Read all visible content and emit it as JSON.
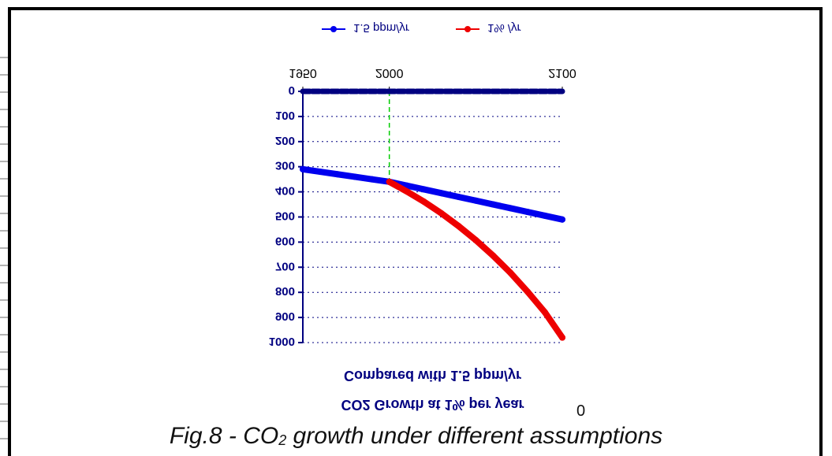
{
  "chart_data": {
    "type": "line",
    "title": "CO2 Growth at 1% per year",
    "subtitle": "Compared with 1.5 ppm/yr",
    "x": [
      1950,
      1960,
      1970,
      1980,
      1990,
      2000,
      2010,
      2020,
      2030,
      2040,
      2050,
      2060,
      2070,
      2080,
      2090,
      2100
    ],
    "x_ticks": [
      1950,
      2000,
      2100
    ],
    "xlim": [
      1950,
      2100
    ],
    "ylim": [
      0,
      1000
    ],
    "y_ticks": [
      0,
      100,
      200,
      300,
      400,
      500,
      600,
      700,
      800,
      900,
      1000
    ],
    "grid": true,
    "legend_position": "top",
    "series": [
      {
        "name": "1.5 ppm/yr",
        "color": "#0000ee",
        "x": [
          1950,
          1960,
          1970,
          1980,
          1990,
          2000,
          2010,
          2020,
          2030,
          2040,
          2050,
          2060,
          2070,
          2080,
          2090,
          2100
        ],
        "values": [
          310,
          320,
          330,
          340,
          350,
          360,
          375,
          390,
          405,
          420,
          435,
          450,
          465,
          480,
          495,
          510
        ]
      },
      {
        "name": "1% /yr",
        "color": "#ee0000",
        "x": [
          2000,
          2010,
          2020,
          2030,
          2040,
          2050,
          2060,
          2070,
          2080,
          2090,
          2100
        ],
        "values": [
          360,
          398,
          439,
          485,
          536,
          592,
          654,
          722,
          798,
          880,
          980
        ]
      },
      {
        "name": "",
        "color": "#000080",
        "x": [
          1950,
          1960,
          1970,
          1980,
          1990,
          2000,
          2010,
          2020,
          2030,
          2040,
          2050,
          2060,
          2070,
          2080,
          2090,
          2100
        ],
        "values": [
          0,
          0,
          0,
          0,
          0,
          0,
          0,
          0,
          0,
          0,
          0,
          0,
          0,
          0,
          0,
          0
        ]
      }
    ],
    "reference_line": {
      "x": 2000,
      "color": "#00cc00"
    },
    "stray_label": "0"
  },
  "caption": {
    "prefix": "Fig.8 - CO",
    "sub": "2",
    "suffix": " growth under different assumptions"
  }
}
